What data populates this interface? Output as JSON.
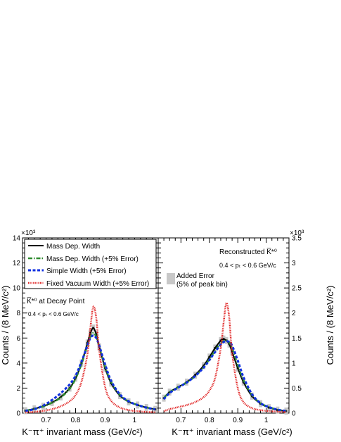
{
  "figure": {
    "left_ylabel": "Counts / (8 MeV/c²)",
    "right_ylabel": "Counts / (8 MeV/c²)",
    "left_multiplier": "×10³",
    "right_multiplier": "×10³",
    "left_xlabel": "K⁻π⁺ invariant mass (GeV/c²)",
    "right_xlabel": "K⁻π⁺ invariant mass (GeV/c²)"
  },
  "left_panel": {
    "legend": [
      {
        "label": "Mass Dep. Width",
        "color": "#000000",
        "style": "solid"
      },
      {
        "label": "Mass Dep. Width (+5% Error)",
        "color": "#2e8b2e",
        "style": "dashdot"
      },
      {
        "label": "Simple Width (+5% Error)",
        "color": "#1030e0",
        "style": "dashed"
      },
      {
        "label": "Fixed Vacuum Width (+5% Error)",
        "color": "#e02020",
        "style": "dotted"
      }
    ],
    "annotation_title": "K̅*⁰ at Decay Point",
    "annotation_cut": "0.4 < pₜ < 0.6 GeV/c"
  },
  "right_panel": {
    "annotation_title": "Reconstructed K̅*⁰",
    "annotation_cut": "0.4 < pₜ < 0.6 GeV/c",
    "error_legend_line1": "Added Error",
    "error_legend_line2": "(5% of peak bin)"
  },
  "chart_data": [
    {
      "type": "line",
      "title": "",
      "xlabel": "K⁻π⁺ invariant mass (GeV/c²)",
      "ylabel": "Counts / (8 MeV/c²)",
      "xlim": [
        0.62,
        1.08
      ],
      "ylim": [
        0,
        14000
      ],
      "x_ticks": [
        "0.7",
        "0.8",
        "0.9",
        "1"
      ],
      "y_ticks": [
        "0",
        "2",
        "4",
        "6",
        "8",
        "10",
        "12",
        "14"
      ],
      "x": [
        0.63,
        0.66,
        0.69,
        0.72,
        0.75,
        0.78,
        0.8,
        0.82,
        0.84,
        0.85,
        0.86,
        0.87,
        0.88,
        0.9,
        0.92,
        0.95,
        0.98,
        1.01,
        1.04,
        1.07
      ],
      "series": [
        {
          "name": "Mass Dep. Width",
          "values": [
            200,
            350,
            550,
            850,
            1300,
            2000,
            2800,
            4000,
            5600,
            6400,
            6800,
            6300,
            5300,
            3600,
            2400,
            1400,
            900,
            650,
            450,
            300
          ]
        },
        {
          "name": "Mass Dep. Width (+5% Error)",
          "values": [
            200,
            340,
            530,
            830,
            1250,
            1950,
            2750,
            3900,
            5400,
            6100,
            6400,
            6100,
            5300,
            3700,
            2500,
            1450,
            930,
            660,
            460,
            310
          ]
        },
        {
          "name": "Simple Width (+5% Error)",
          "values": [
            180,
            320,
            600,
            1050,
            1600,
            2300,
            3000,
            4100,
            5400,
            6000,
            6200,
            6000,
            5400,
            3900,
            2600,
            1500,
            950,
            650,
            440,
            300
          ]
        },
        {
          "name": "Fixed Vacuum Width (+5% Error)",
          "values": [
            50,
            100,
            180,
            320,
            550,
            950,
            1450,
            2500,
            4700,
            6800,
            8500,
            7600,
            5000,
            2100,
            1000,
            450,
            250,
            150,
            100,
            60
          ]
        }
      ]
    },
    {
      "type": "line",
      "title": "",
      "xlabel": "K⁻π⁺ invariant mass (GeV/c²)",
      "ylabel": "Counts / (8 MeV/c²)",
      "xlim": [
        0.62,
        1.08
      ],
      "ylim": [
        0,
        3500
      ],
      "x_ticks": [
        "0.7",
        "0.8",
        "0.9",
        "1"
      ],
      "y_ticks": [
        "0",
        "0.5",
        "1",
        "1.5",
        "2",
        "2.5",
        "3",
        "3.5"
      ],
      "x": [
        0.64,
        0.66,
        0.69,
        0.72,
        0.75,
        0.78,
        0.8,
        0.82,
        0.84,
        0.85,
        0.86,
        0.87,
        0.88,
        0.9,
        0.92,
        0.95,
        0.98,
        1.01,
        1.04,
        1.07
      ],
      "series": [
        {
          "name": "Mass Dep. Width",
          "values": [
            300,
            420,
            520,
            620,
            760,
            950,
            1120,
            1300,
            1450,
            1480,
            1450,
            1380,
            1220,
            900,
            620,
            340,
            190,
            110,
            60,
            40
          ]
        },
        {
          "name": "Mass Dep. Width (+5% Error)",
          "values": [
            300,
            420,
            520,
            610,
            740,
            920,
            1080,
            1250,
            1400,
            1440,
            1450,
            1410,
            1300,
            960,
            660,
            360,
            200,
            120,
            70,
            45
          ]
        },
        {
          "name": "Simple Width (+5% Error)",
          "values": [
            280,
            400,
            510,
            610,
            740,
            910,
            1060,
            1220,
            1370,
            1420,
            1440,
            1420,
            1350,
            1050,
            720,
            380,
            200,
            120,
            70,
            45
          ]
        },
        {
          "name": "Fixed Vacuum Width (+5% Error)",
          "values": [
            40,
            80,
            120,
            160,
            220,
            320,
            450,
            700,
            1300,
            1800,
            2200,
            1900,
            1200,
            500,
            220,
            100,
            60,
            40,
            30,
            20
          ]
        }
      ]
    }
  ]
}
